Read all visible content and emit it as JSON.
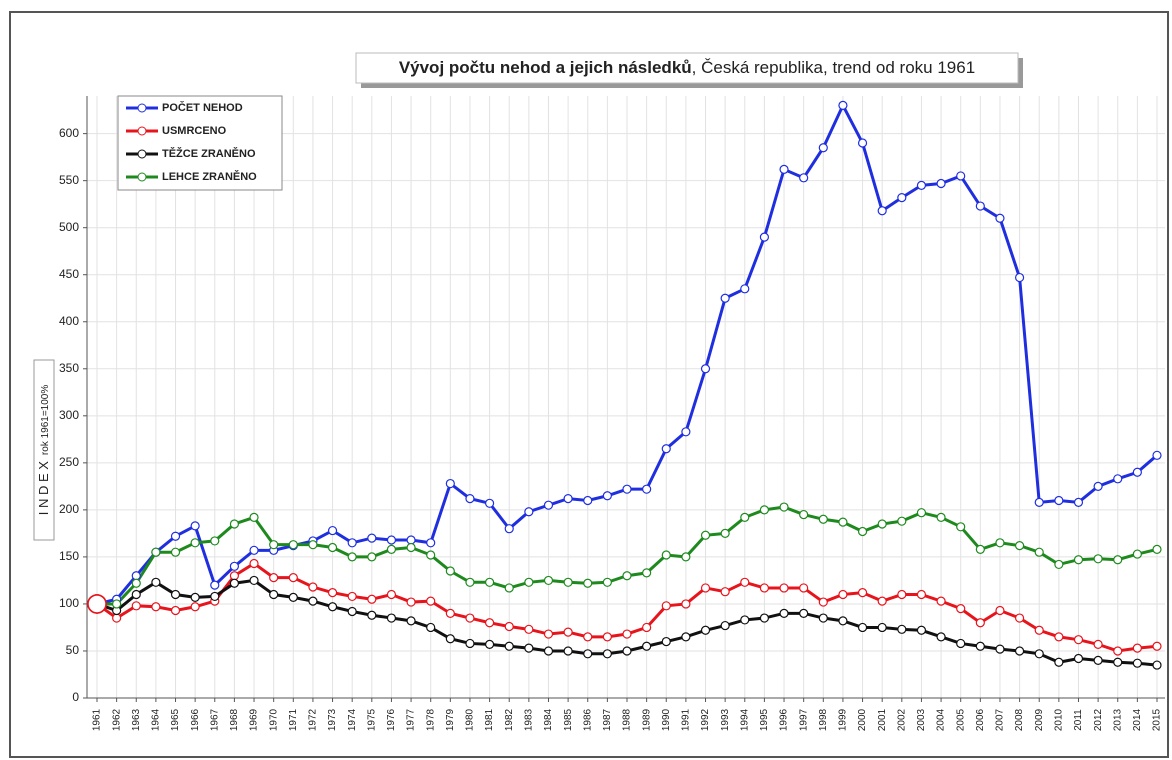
{
  "chart_data": {
    "type": "line",
    "title": [
      "Vývoj počtu nehod a jejich následků",
      ", Česká republika, trend od roku 1961"
    ],
    "y_label": [
      "I N D E X",
      "rok 1961=100%"
    ],
    "categories": [
      "1961",
      "1962",
      "1963",
      "1964",
      "1965",
      "1966",
      "1967",
      "1968",
      "1969",
      "1970",
      "1971",
      "1972",
      "1973",
      "1974",
      "1975",
      "1976",
      "1977",
      "1978",
      "1979",
      "1980",
      "1981",
      "1982",
      "1983",
      "1984",
      "1985",
      "1986",
      "1987",
      "1988",
      "1989",
      "1990",
      "1991",
      "1992",
      "1993",
      "1994",
      "1995",
      "1996",
      "1997",
      "1998",
      "1999",
      "2000",
      "2001",
      "2002",
      "2003",
      "2004",
      "2005",
      "2006",
      "2007",
      "2008",
      "2009",
      "2010",
      "2011",
      "2012",
      "2013",
      "2014",
      "2015"
    ],
    "series": [
      {
        "name": "POČET NEHOD",
        "color": "#1f2fe0",
        "values": [
          100,
          105,
          130,
          155,
          172,
          183,
          120,
          140,
          157,
          157,
          162,
          167,
          178,
          165,
          170,
          168,
          168,
          165,
          228,
          212,
          207,
          180,
          198,
          205,
          212,
          210,
          215,
          222,
          222,
          265,
          283,
          350,
          425,
          435,
          490,
          562,
          553,
          585,
          630,
          590,
          518,
          532,
          545,
          547,
          555,
          523,
          510,
          447,
          208,
          210,
          208,
          225,
          233,
          240,
          258
        ]
      },
      {
        "name": "USMRCENO",
        "color": "#e8141c",
        "values": [
          100,
          85,
          98,
          97,
          93,
          97,
          103,
          130,
          143,
          128,
          128,
          118,
          112,
          108,
          105,
          110,
          102,
          103,
          90,
          85,
          80,
          76,
          73,
          68,
          70,
          65,
          65,
          68,
          75,
          98,
          100,
          117,
          113,
          123,
          117,
          117,
          117,
          102,
          110,
          112,
          103,
          110,
          110,
          103,
          95,
          80,
          93,
          85,
          72,
          65,
          62,
          57,
          50,
          53,
          55
        ]
      },
      {
        "name": "TĚŽCE ZRANĚNO",
        "color": "#111111",
        "values": [
          100,
          93,
          110,
          123,
          110,
          107,
          108,
          122,
          125,
          110,
          107,
          103,
          97,
          92,
          88,
          85,
          82,
          75,
          63,
          58,
          57,
          55,
          53,
          50,
          50,
          47,
          47,
          50,
          55,
          60,
          65,
          72,
          77,
          83,
          85,
          90,
          90,
          85,
          82,
          75,
          75,
          73,
          72,
          65,
          58,
          55,
          52,
          50,
          47,
          38,
          42,
          40,
          38,
          37,
          35
        ]
      },
      {
        "name": "LEHCE ZRANĚNO",
        "color": "#1e8a1e",
        "values": [
          100,
          100,
          122,
          155,
          155,
          165,
          167,
          185,
          192,
          163,
          163,
          163,
          160,
          150,
          150,
          158,
          160,
          152,
          135,
          123,
          123,
          117,
          123,
          125,
          123,
          122,
          123,
          130,
          133,
          152,
          150,
          173,
          175,
          192,
          200,
          203,
          195,
          190,
          187,
          177,
          185,
          188,
          197,
          192,
          182,
          158,
          165,
          162,
          155,
          142,
          147,
          148,
          147,
          153,
          158
        ]
      }
    ],
    "ylim": [
      0,
      640
    ],
    "yticks": [
      0,
      50,
      100,
      150,
      200,
      250,
      300,
      350,
      400,
      450,
      500,
      550,
      600
    ],
    "grid": true,
    "legend": "upper left"
  }
}
